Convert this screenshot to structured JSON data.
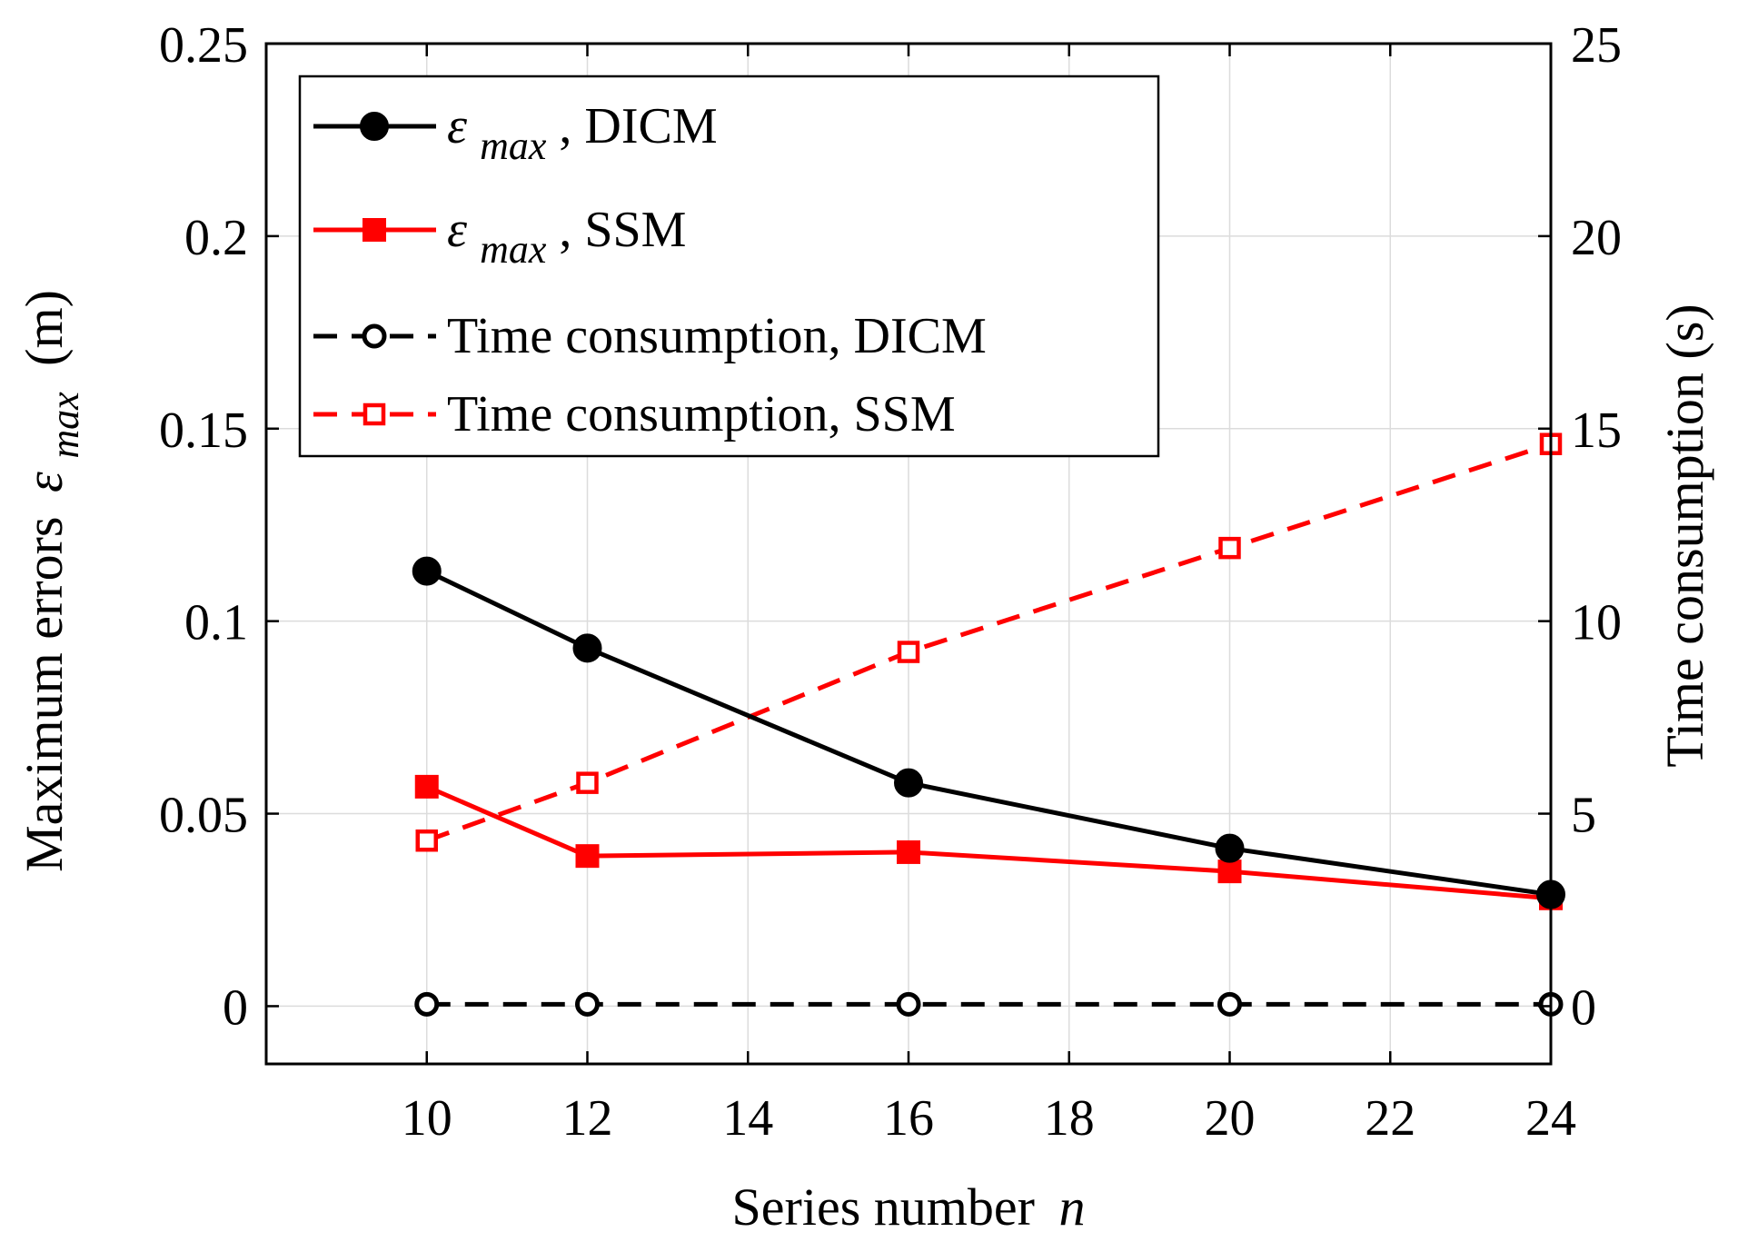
{
  "chart_data": {
    "type": "line",
    "x": [
      10,
      12,
      16,
      20,
      24
    ],
    "xlabel": "Series number",
    "xlabel_var": "n",
    "ylabel_left": "Maximum errors",
    "ylabel_left_symbol": "ε",
    "ylabel_left_subscript": "max",
    "ylabel_left_unit": "(m)",
    "ylabel_right": "Time consumption (s)",
    "xlim": [
      8,
      24
    ],
    "xticks": [
      10,
      12,
      14,
      16,
      18,
      20,
      22,
      24
    ],
    "xtick_labels": [
      "10",
      "12",
      "14",
      "16",
      "18",
      "20",
      "22",
      "24"
    ],
    "ylim_left": [
      -0.015,
      0.25
    ],
    "yticks_left": [
      0,
      0.05,
      0.1,
      0.15,
      0.2,
      0.25
    ],
    "ytick_labels_left": [
      "0",
      "0.05",
      "0.1",
      "0.15",
      "0.2",
      "0.25"
    ],
    "ylim_right": [
      -1.5,
      25
    ],
    "yticks_right": [
      0,
      5,
      10,
      15,
      20,
      25
    ],
    "ytick_labels_right": [
      "0",
      "5",
      "10",
      "15",
      "20",
      "25"
    ],
    "grid": true,
    "legend_position": "top-left",
    "series": [
      {
        "name": "ε_max, DICM",
        "legend_symbol": "ε",
        "legend_subscript": "max",
        "legend_suffix": ", DICM",
        "axis": "left",
        "values": [
          0.113,
          0.093,
          0.058,
          0.041,
          0.029
        ],
        "color": "#000000",
        "line_style": "solid",
        "marker": "filled-circle"
      },
      {
        "name": "ε_max, SSM",
        "legend_symbol": "ε",
        "legend_subscript": "max",
        "legend_suffix": ", SSM",
        "axis": "left",
        "values": [
          0.057,
          0.039,
          0.04,
          0.035,
          0.028
        ],
        "color": "#ff0000",
        "line_style": "solid",
        "marker": "filled-square"
      },
      {
        "name": "Time consumption, DICM",
        "legend_label": "Time consumption, DICM",
        "axis": "right",
        "values": [
          0.05,
          0.05,
          0.05,
          0.05,
          0.05
        ],
        "color": "#000000",
        "line_style": "dashed",
        "marker": "open-circle"
      },
      {
        "name": "Time consumption, SSM",
        "legend_label": "Time consumption, SSM",
        "axis": "right",
        "values": [
          4.3,
          5.8,
          9.2,
          11.9,
          14.6
        ],
        "color": "#ff0000",
        "line_style": "dashed",
        "marker": "open-square"
      }
    ]
  }
}
